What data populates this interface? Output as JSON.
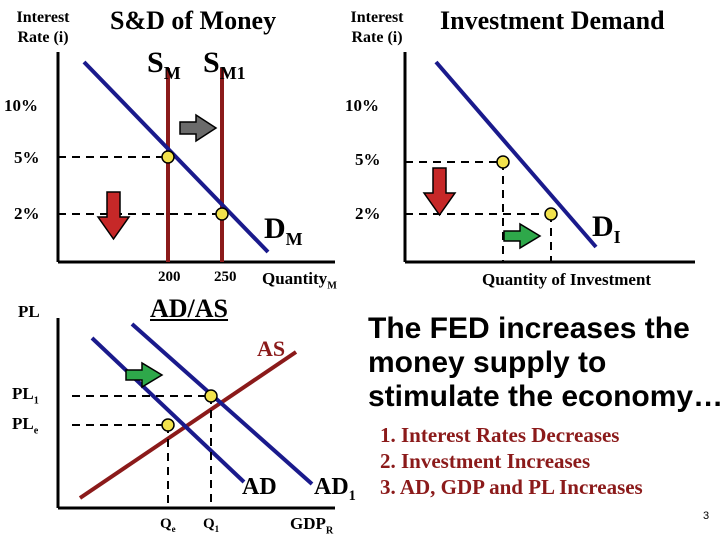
{
  "slide_number": "3",
  "money_market": {
    "axis_title_line1": "Interest",
    "axis_title_line2": "Rate (i)",
    "title": "S&D of Money",
    "supply_label": "S",
    "supply_sub": "M",
    "supply2_label": "S",
    "supply2_sub": "M1",
    "demand_label": "D",
    "demand_sub": "M",
    "rate_10": "10%",
    "rate_5": "5%",
    "rate_2": "2%",
    "qty_200": "200",
    "qty_250": "250",
    "x_axis_label": "Quantity",
    "x_axis_sub": "M"
  },
  "investment": {
    "axis_title_line1": "Interest",
    "axis_title_line2": "Rate (i)",
    "title": "Investment Demand",
    "rate_10": "10%",
    "rate_5": "5%",
    "rate_2": "2%",
    "demand_label": "D",
    "demand_sub": "I",
    "x_axis_label": "Quantity of Investment"
  },
  "adas": {
    "y_axis_label": "PL",
    "title": "AD/AS",
    "as_label": "AS",
    "ad_label": "AD",
    "ad1_label": "AD",
    "ad1_sub": "1",
    "pl1_label": "PL",
    "pl1_sub": "1",
    "ple_label": "PL",
    "ple_sub": "e",
    "qe_label": "Q",
    "qe_sub": "e",
    "q1_label": "Q",
    "q1_sub": "1",
    "x_axis_label": "GDP",
    "x_axis_sub": "R"
  },
  "explanation": {
    "line1": "The FED increases the",
    "line2": "money supply to",
    "line3": "stimulate the economy…",
    "items": [
      {
        "num": "1.",
        "text": "Interest Rates Decreases"
      },
      {
        "num": "2.",
        "text": "Investment Increases"
      },
      {
        "num": "3.",
        "text": "AD, GDP and PL Increases"
      }
    ]
  },
  "colors": {
    "demand_line": "#1a1a8c",
    "supply_line": "#8b1a1a",
    "point_fill": "#f2e24c",
    "up_arrow": "#2ea84a",
    "down_arrow": "#c62828",
    "shift_arrow_gray": "#6b6b6b",
    "list_text": "#8b1a1a"
  }
}
